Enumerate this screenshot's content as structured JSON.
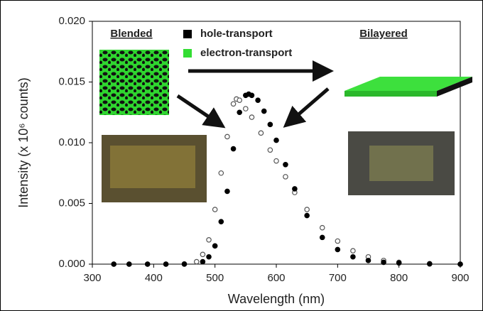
{
  "chart_data": {
    "type": "scatter",
    "xlabel": "Wavelength (nm)",
    "ylabel": "Intensity (x 10⁶ counts)",
    "xlim": [
      300,
      900
    ],
    "xticks": [
      300,
      400,
      500,
      600,
      700,
      800,
      900
    ],
    "ylim": [
      0,
      0.02
    ],
    "yticks": [
      {
        "value": 0,
        "label": "0.000"
      },
      {
        "value": 0.005,
        "label": "0.005"
      },
      {
        "value": 0.01,
        "label": "0.010"
      },
      {
        "value": 0.015,
        "label": "0.015"
      },
      {
        "value": 0.02,
        "label": "0.020"
      }
    ],
    "annotations": [
      "Blended",
      "Bilayered"
    ],
    "legend": [
      {
        "label": "hole-transport",
        "color": "#000000"
      },
      {
        "label": "electron-transport",
        "color": "#33dd33"
      }
    ],
    "series": [
      {
        "marker": "open",
        "color": "#555555",
        "x": [
          335,
          360,
          390,
          420,
          450,
          470,
          480,
          490,
          500,
          510,
          520,
          530,
          535,
          540,
          550,
          560,
          575,
          590,
          600,
          615,
          630,
          650,
          675,
          700,
          725,
          750,
          775,
          800,
          850,
          900
        ],
        "values": [
          0,
          0,
          0,
          0,
          2e-05,
          0.0002,
          0.0008,
          0.002,
          0.0045,
          0.0075,
          0.0105,
          0.0132,
          0.0136,
          0.0135,
          0.0128,
          0.0121,
          0.0108,
          0.0094,
          0.0085,
          0.0072,
          0.0059,
          0.0045,
          0.003,
          0.0019,
          0.0011,
          0.0006,
          0.0003,
          0.00015,
          4e-05,
          0
        ]
      },
      {
        "marker": "filled",
        "color": "#000000",
        "x": [
          335,
          360,
          390,
          420,
          450,
          480,
          490,
          500,
          510,
          520,
          530,
          540,
          550,
          555,
          560,
          570,
          580,
          590,
          600,
          615,
          630,
          650,
          675,
          700,
          725,
          750,
          775,
          800,
          850,
          900
        ],
        "values": [
          0,
          0,
          0,
          0,
          0,
          0.0002,
          0.0006,
          0.0015,
          0.0035,
          0.006,
          0.0095,
          0.0125,
          0.0139,
          0.014,
          0.0139,
          0.0135,
          0.0126,
          0.0115,
          0.0102,
          0.0082,
          0.0062,
          0.004,
          0.0022,
          0.0012,
          0.0006,
          0.0003,
          0.00015,
          0.0001,
          2e-05,
          0
        ]
      }
    ]
  }
}
